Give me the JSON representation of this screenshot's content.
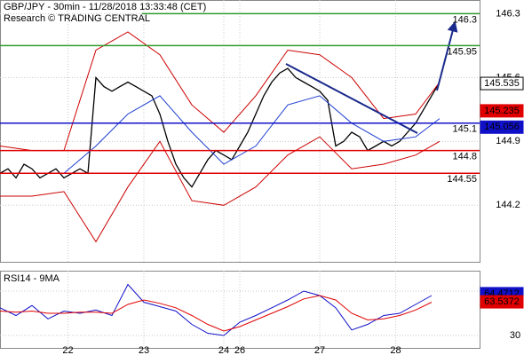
{
  "chart_data": {
    "type": "price",
    "title": "GBP/JPY - 30min - 11/28/2018 13:33:48 (CET)",
    "subtitle": "Research © TRADING CENTRAL",
    "xlim": [
      0,
      120
    ],
    "xticks": [
      {
        "value": 17,
        "label": "22"
      },
      {
        "value": 36,
        "label": "23"
      },
      {
        "value": 56,
        "label": "24"
      },
      {
        "value": 60,
        "label": "26"
      },
      {
        "value": 80,
        "label": "27"
      },
      {
        "value": 99,
        "label": "28"
      }
    ],
    "ylim": [
      143.58,
      146.45
    ],
    "yticks": [
      144.2,
      144.9,
      145.6,
      146.3
    ],
    "grid": true,
    "series": [
      {
        "name": "GBP/JPY",
        "color": "#000000",
        "x": [
          0,
          2,
          4,
          6,
          8,
          10,
          12,
          14,
          16,
          18,
          20,
          22,
          24,
          26,
          28,
          30,
          32,
          34,
          36,
          38,
          40,
          42,
          44,
          46,
          48,
          50,
          52,
          54,
          56,
          58,
          60,
          62,
          64,
          66,
          68,
          70,
          72,
          74,
          76,
          78,
          80,
          82,
          84,
          86,
          88,
          90,
          92,
          94,
          96,
          98,
          100,
          102,
          104,
          106,
          108,
          110
        ],
        "values": [
          144.55,
          144.6,
          144.5,
          144.65,
          144.6,
          144.5,
          144.55,
          144.6,
          144.5,
          144.55,
          144.6,
          144.55,
          145.6,
          145.5,
          145.45,
          145.5,
          145.55,
          145.5,
          145.45,
          145.4,
          145.2,
          144.9,
          144.65,
          144.5,
          144.4,
          144.55,
          144.7,
          144.8,
          144.75,
          144.7,
          144.85,
          145.0,
          145.2,
          145.4,
          145.55,
          145.65,
          145.7,
          145.6,
          145.55,
          145.5,
          145.45,
          145.35,
          144.85,
          144.9,
          145.0,
          144.95,
          144.8,
          144.85,
          144.9,
          144.85,
          144.9,
          145.0,
          145.1,
          145.25,
          145.4,
          145.55
        ]
      },
      {
        "color": "#cc0000",
        "x": [
          0,
          8,
          16,
          24,
          32,
          40,
          48,
          56,
          64,
          72,
          80,
          88,
          96,
          104,
          110
        ],
        "values": [
          144.85,
          144.8,
          144.8,
          145.9,
          146.1,
          145.85,
          145.3,
          145.0,
          145.4,
          145.9,
          145.85,
          145.6,
          145.15,
          145.2,
          145.55
        ]
      },
      {
        "color": "#cc0000",
        "x": [
          0,
          8,
          16,
          24,
          32,
          40,
          48,
          56,
          64,
          72,
          80,
          88,
          96,
          104,
          110
        ],
        "values": [
          144.3,
          144.3,
          144.35,
          143.8,
          144.4,
          144.9,
          144.25,
          144.2,
          144.4,
          144.75,
          144.95,
          144.6,
          144.65,
          144.75,
          144.9
        ]
      },
      {
        "color": "#1f3fcf",
        "x": [
          0,
          8,
          16,
          24,
          32,
          40,
          48,
          56,
          64,
          72,
          80,
          88,
          96,
          104,
          110
        ],
        "values": [
          144.55,
          144.55,
          144.55,
          144.85,
          145.2,
          145.4,
          145.0,
          144.65,
          144.85,
          145.3,
          145.4,
          145.1,
          144.9,
          144.95,
          145.15
        ]
      }
    ],
    "levels": [
      {
        "value": 146.3,
        "color": "#2e9a2e"
      },
      {
        "value": 145.95,
        "color": "#2e9a2e"
      },
      {
        "value": 145.1,
        "color": "#1010c8"
      },
      {
        "value": 144.8,
        "color": "#e00000"
      },
      {
        "value": 144.55,
        "color": "#e00000"
      }
    ],
    "price_tags": [
      {
        "value": 145.535,
        "color": "#ffffff"
      },
      {
        "value": 145.235,
        "color": "#e00000"
      },
      {
        "value": 145.056,
        "color": "#1010c8"
      }
    ],
    "rsi": {
      "title": "RSI14 - 9MA",
      "ylim": [
        18.8,
        88.4
      ],
      "yticks": [
        30,
        70
      ],
      "series": [
        {
          "color": "#1010c8",
          "x": [
            0,
            4,
            8,
            12,
            16,
            20,
            24,
            28,
            32,
            36,
            40,
            44,
            48,
            52,
            56,
            60,
            64,
            68,
            72,
            76,
            80,
            84,
            88,
            92,
            96,
            100,
            104,
            108
          ],
          "values": [
            55,
            48,
            57,
            45,
            52,
            50,
            53,
            48,
            76,
            60,
            56,
            52,
            40,
            32,
            30,
            42,
            48,
            55,
            62,
            70,
            66,
            55,
            35,
            40,
            48,
            50,
            58,
            66
          ]
        },
        {
          "color": "#e00000",
          "x": [
            0,
            4,
            8,
            12,
            16,
            20,
            24,
            28,
            32,
            36,
            40,
            44,
            48,
            52,
            56,
            60,
            64,
            68,
            72,
            76,
            80,
            84,
            88,
            92,
            96,
            100,
            104,
            108
          ],
          "values": [
            52,
            51,
            52,
            50,
            50,
            51,
            51,
            50,
            58,
            62,
            59,
            55,
            48,
            40,
            34,
            38,
            44,
            50,
            56,
            63,
            66,
            62,
            50,
            44,
            45,
            48,
            53,
            60
          ]
        }
      ],
      "tags": [
        {
          "value": 64.4712,
          "color": "#1010c8"
        },
        {
          "value": 63.5372,
          "color": "#e00000"
        }
      ]
    }
  }
}
